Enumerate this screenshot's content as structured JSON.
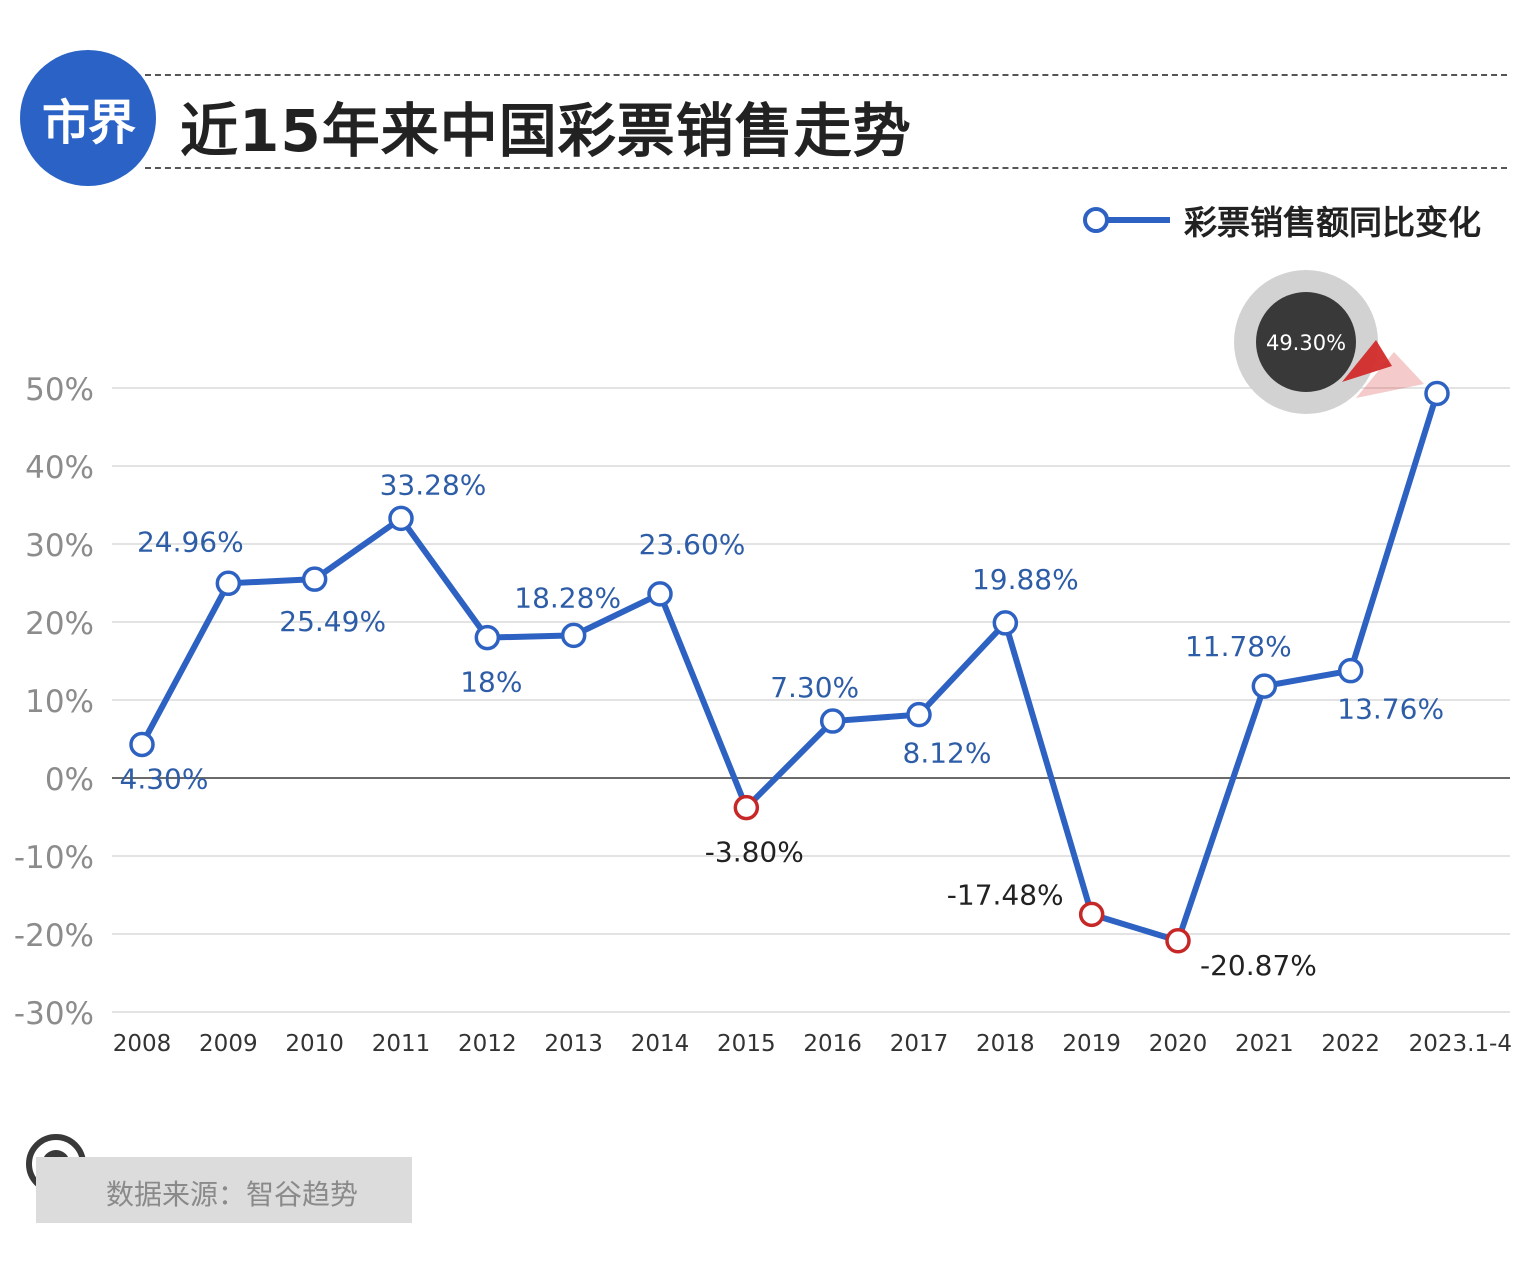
{
  "header": {
    "logo_text": "市界",
    "title": "近15年来中国彩票销售走势"
  },
  "legend": {
    "label": "彩票销售额同比变化"
  },
  "source": {
    "text": "数据来源：智谷趋势"
  },
  "colors": {
    "line": "#2e62c2",
    "negative_marker": "#c62828",
    "label_positive": "#2e5da8",
    "label_negative": "#222222",
    "grid": "#e3e3e3",
    "zero_line": "#6a6a6a",
    "badge": "#3a3939",
    "arrow": "#d22b2b"
  },
  "chart_data": {
    "type": "line",
    "categories": [
      "2008",
      "2009",
      "2010",
      "2011",
      "2012",
      "2013",
      "2014",
      "2015",
      "2016",
      "2017",
      "2018",
      "2019",
      "2020",
      "2021",
      "2022",
      "2023.1-4"
    ],
    "series": [
      {
        "name": "彩票销售额同比变化",
        "values": [
          4.3,
          24.96,
          25.49,
          33.28,
          18,
          18.28,
          23.6,
          -3.8,
          7.3,
          8.12,
          19.88,
          -17.48,
          -20.87,
          11.78,
          13.76,
          49.3
        ]
      }
    ],
    "data_labels": [
      "4.30%",
      "24.96%",
      "25.49%",
      "33.28%",
      "18%",
      "18.28%",
      "23.60%",
      "-3.80%",
      "7.30%",
      "8.12%",
      "19.88%",
      "-17.48%",
      "-20.87%",
      "11.78%",
      "13.76%",
      "49.30%"
    ],
    "y_ticks": [
      50,
      40,
      30,
      20,
      10,
      0,
      -10,
      -20,
      -30
    ],
    "y_tick_labels": [
      "50%",
      "40%",
      "30%",
      "20%",
      "10%",
      "0%",
      "-10%",
      "-20%",
      "-30%"
    ],
    "ylim": [
      -30,
      50
    ],
    "grid": true,
    "legend_position": "top-right",
    "highlight_label": "49.30%"
  }
}
